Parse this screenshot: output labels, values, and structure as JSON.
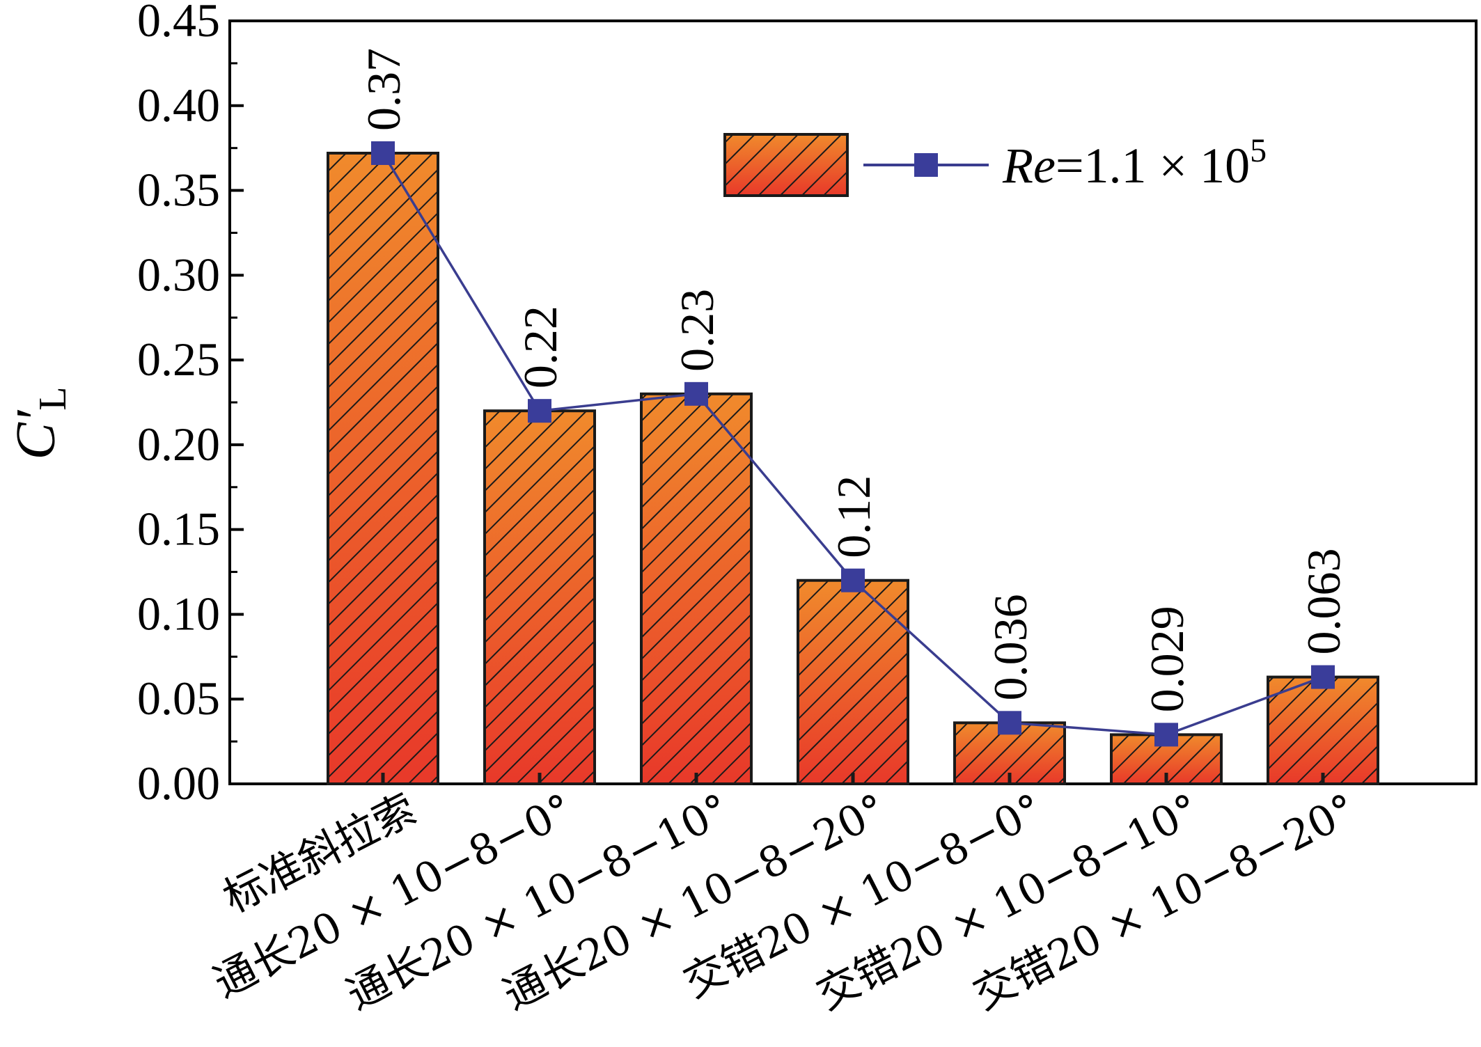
{
  "chart_data": {
    "type": "bar",
    "title": "",
    "xlabel": "",
    "ylabel": "C′L",
    "ylabel_main": "C′",
    "ylabel_sub": "L",
    "ylim": [
      0,
      0.45
    ],
    "yticks": [
      "0.00",
      "0.05",
      "0.10",
      "0.15",
      "0.20",
      "0.25",
      "0.30",
      "0.35",
      "0.40",
      "0.45"
    ],
    "categories": [
      "标准斜拉索",
      "通长20 × 10−8−0°",
      "通长20 × 10−8−10°",
      "通长20 × 10−8−20°",
      "交错20 × 10−8−0°",
      "交错20 × 10−8−10°",
      "交错20 × 10−8−20°"
    ],
    "series": [
      {
        "name": "Re=1.1 × 10^5",
        "values": [
          0.372,
          0.22,
          0.23,
          0.12,
          0.036,
          0.029,
          0.063
        ],
        "labels": [
          "0.37",
          "0.22",
          "0.23",
          "0.12",
          "0.036",
          "0.029",
          "0.063"
        ]
      }
    ],
    "legend": {
      "position": "top-right",
      "re_italic": "Re",
      "re_rest": "=1.1 × 10",
      "re_exp": "5"
    },
    "grid": false,
    "colors": {
      "bar_top": "#f08a2c",
      "bar_bottom": "#e8392a",
      "hatch": "#1a1a1a",
      "line": "#3a3d8f",
      "marker": "#3a3d9a"
    }
  }
}
